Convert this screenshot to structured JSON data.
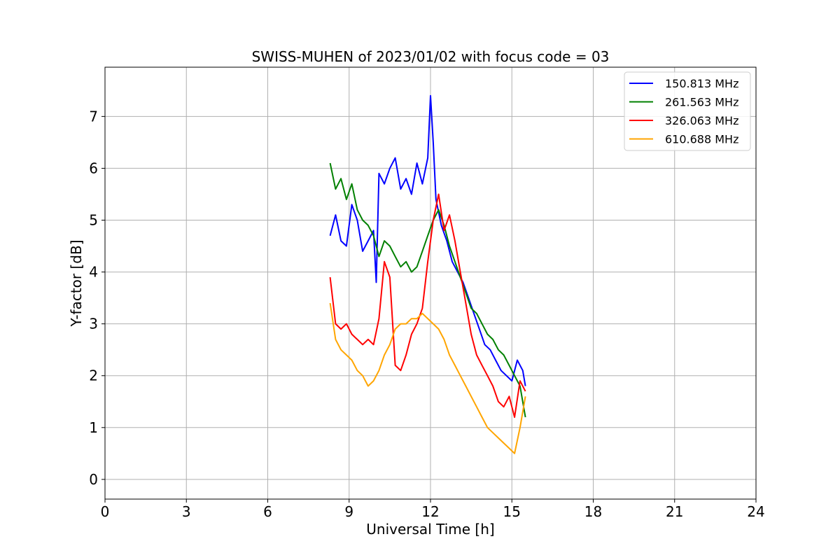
{
  "chart_data": {
    "type": "line",
    "title": "SWISS-MUHEN of 2023/01/02 with focus code = 03",
    "xlabel": "Universal Time [h]",
    "ylabel": "Y-factor [dB]",
    "xlim": [
      0,
      24
    ],
    "ylim": [
      -0.38,
      7.95
    ],
    "x_ticks": [
      0,
      3,
      6,
      9,
      12,
      15,
      18,
      21,
      24
    ],
    "y_ticks": [
      0,
      1,
      2,
      3,
      4,
      5,
      6,
      7
    ],
    "grid": true,
    "legend_position": "top-right",
    "series": [
      {
        "name": "150.813 MHz",
        "color": "#0000ff",
        "x": [
          8.3,
          8.5,
          8.7,
          8.9,
          9.1,
          9.3,
          9.5,
          9.7,
          9.9,
          10.0,
          10.1,
          10.3,
          10.5,
          10.7,
          10.9,
          11.1,
          11.3,
          11.5,
          11.7,
          11.9,
          12.0,
          12.1,
          12.2,
          12.4,
          12.6,
          12.8,
          13.0,
          13.2,
          13.4,
          13.6,
          13.8,
          14.0,
          14.2,
          14.4,
          14.6,
          14.8,
          15.0,
          15.2,
          15.4,
          15.5
        ],
        "y": [
          4.7,
          5.1,
          4.6,
          4.5,
          5.3,
          5.0,
          4.4,
          4.6,
          4.8,
          3.8,
          5.9,
          5.7,
          6.0,
          6.2,
          5.6,
          5.8,
          5.5,
          6.1,
          5.7,
          6.2,
          7.4,
          6.5,
          5.4,
          4.9,
          4.6,
          4.2,
          4.0,
          3.8,
          3.5,
          3.2,
          2.9,
          2.6,
          2.5,
          2.3,
          2.1,
          2.0,
          1.9,
          2.3,
          2.1,
          1.8
        ]
      },
      {
        "name": "261.563 MHz",
        "color": "#008000",
        "x": [
          8.3,
          8.5,
          8.7,
          8.9,
          9.1,
          9.3,
          9.5,
          9.7,
          9.9,
          10.1,
          10.3,
          10.5,
          10.7,
          10.9,
          11.1,
          11.3,
          11.5,
          11.7,
          11.9,
          12.1,
          12.3,
          12.5,
          12.7,
          12.9,
          13.1,
          13.3,
          13.5,
          13.7,
          13.9,
          14.1,
          14.3,
          14.5,
          14.7,
          14.9,
          15.1,
          15.3,
          15.5
        ],
        "y": [
          6.1,
          5.6,
          5.8,
          5.4,
          5.7,
          5.2,
          5.0,
          4.9,
          4.7,
          4.3,
          4.6,
          4.5,
          4.3,
          4.1,
          4.2,
          4.0,
          4.1,
          4.4,
          4.7,
          5.0,
          5.2,
          4.9,
          4.5,
          4.2,
          3.9,
          3.6,
          3.3,
          3.2,
          3.0,
          2.8,
          2.7,
          2.5,
          2.4,
          2.2,
          2.0,
          1.8,
          1.2
        ]
      },
      {
        "name": "326.063 MHz",
        "color": "#ff0000",
        "x": [
          8.3,
          8.5,
          8.7,
          8.9,
          9.1,
          9.3,
          9.5,
          9.7,
          9.9,
          10.1,
          10.3,
          10.5,
          10.7,
          10.9,
          11.1,
          11.3,
          11.5,
          11.7,
          11.9,
          12.1,
          12.3,
          12.5,
          12.7,
          12.9,
          13.1,
          13.3,
          13.5,
          13.7,
          13.9,
          14.1,
          14.3,
          14.5,
          14.7,
          14.9,
          15.1,
          15.3,
          15.5
        ],
        "y": [
          3.9,
          3.0,
          2.9,
          3.0,
          2.8,
          2.7,
          2.6,
          2.7,
          2.6,
          3.1,
          4.2,
          3.9,
          2.2,
          2.1,
          2.4,
          2.8,
          3.0,
          3.3,
          4.2,
          5.0,
          5.5,
          4.8,
          5.1,
          4.6,
          4.0,
          3.4,
          2.8,
          2.4,
          2.2,
          2.0,
          1.8,
          1.5,
          1.4,
          1.6,
          1.2,
          1.9,
          1.7
        ]
      },
      {
        "name": "610.688 MHz",
        "color": "#ffa500",
        "x": [
          8.3,
          8.5,
          8.7,
          8.9,
          9.1,
          9.3,
          9.5,
          9.7,
          9.9,
          10.1,
          10.3,
          10.5,
          10.7,
          10.9,
          11.1,
          11.3,
          11.5,
          11.7,
          11.9,
          12.1,
          12.3,
          12.5,
          12.7,
          12.9,
          13.1,
          13.3,
          13.5,
          13.7,
          13.9,
          14.1,
          14.3,
          14.5,
          14.7,
          14.9,
          15.1,
          15.3,
          15.5
        ],
        "y": [
          3.4,
          2.7,
          2.5,
          2.4,
          2.3,
          2.1,
          2.0,
          1.8,
          1.9,
          2.1,
          2.4,
          2.6,
          2.9,
          3.0,
          3.0,
          3.1,
          3.1,
          3.2,
          3.1,
          3.0,
          2.9,
          2.7,
          2.4,
          2.2,
          2.0,
          1.8,
          1.6,
          1.4,
          1.2,
          1.0,
          0.9,
          0.8,
          0.7,
          0.6,
          0.5,
          1.0,
          1.6
        ]
      }
    ]
  }
}
